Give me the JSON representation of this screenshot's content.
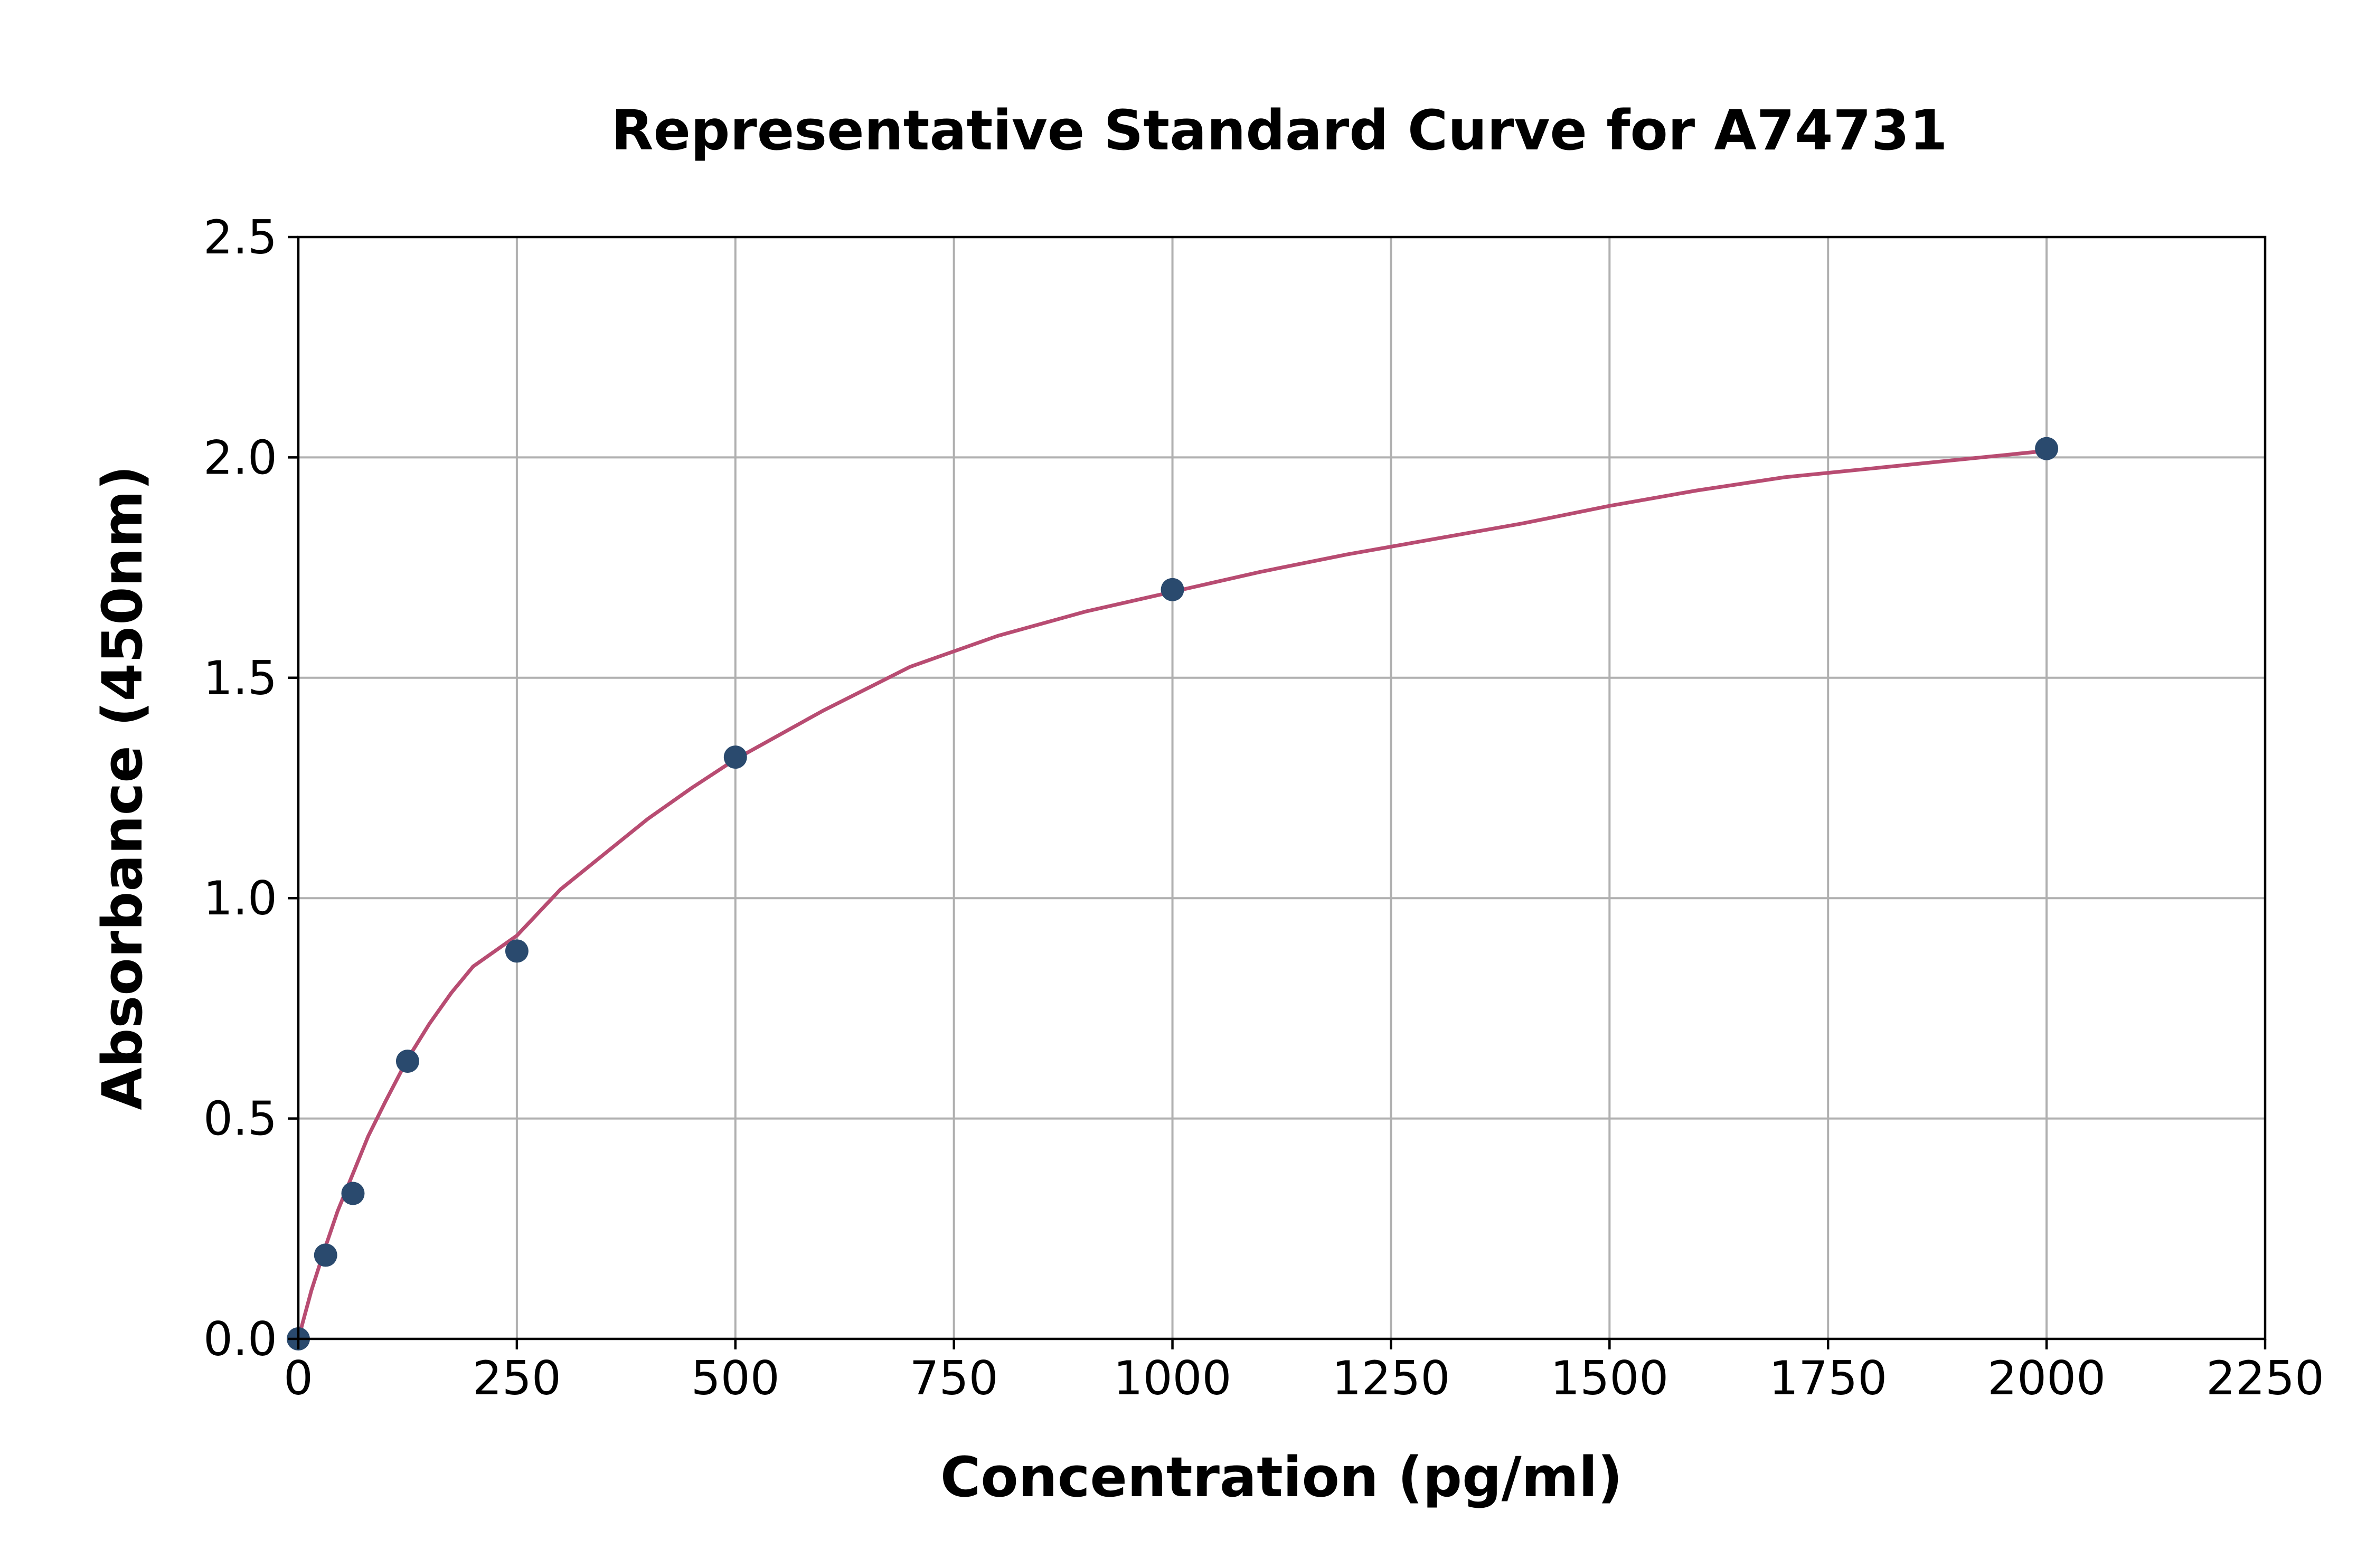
{
  "chart_data": {
    "type": "scatter",
    "title": "Representative Standard Curve for A74731",
    "xlabel": "Concentration (pg/ml)",
    "ylabel": "Absorbance (450nm)",
    "xlim": [
      0,
      2250
    ],
    "ylim": [
      0,
      2.5
    ],
    "xticks": [
      0,
      250,
      500,
      750,
      1000,
      1250,
      1500,
      1750,
      2000,
      2250
    ],
    "xtick_labels": [
      "0",
      "250",
      "500",
      "750",
      "1000",
      "1250",
      "1500",
      "1750",
      "2000",
      "2250"
    ],
    "yticks": [
      0,
      0.5,
      1,
      1.5,
      2,
      2.5
    ],
    "ytick_labels": [
      "0.0",
      "0.5",
      "1.0",
      "1.5",
      "2.0",
      "2.5"
    ],
    "grid": true,
    "series": [
      {
        "x": [
          0,
          31.25,
          62.5,
          125,
          250,
          500,
          1000,
          2000
        ],
        "y": [
          0.0,
          0.19,
          0.33,
          0.63,
          0.88,
          1.32,
          1.7,
          2.02
        ],
        "color": "#2a4a6e",
        "style": "points"
      },
      {
        "x": [
          0,
          15,
          31.25,
          45,
          62.5,
          80,
          100,
          125,
          150,
          175,
          200,
          250,
          300,
          350,
          400,
          450,
          500,
          600,
          700,
          800,
          900,
          1000,
          1100,
          1200,
          1300,
          1400,
          1500,
          1600,
          1700,
          1800,
          1900,
          2000
        ],
        "y": [
          0.0,
          0.11,
          0.21,
          0.29,
          0.375,
          0.46,
          0.54,
          0.635,
          0.715,
          0.785,
          0.845,
          0.915,
          1.02,
          1.1,
          1.18,
          1.25,
          1.315,
          1.425,
          1.525,
          1.595,
          1.65,
          1.695,
          1.74,
          1.78,
          1.815,
          1.85,
          1.89,
          1.925,
          1.955,
          1.975,
          1.995,
          2.015
        ],
        "color": "#b84c72",
        "style": "line"
      }
    ]
  }
}
